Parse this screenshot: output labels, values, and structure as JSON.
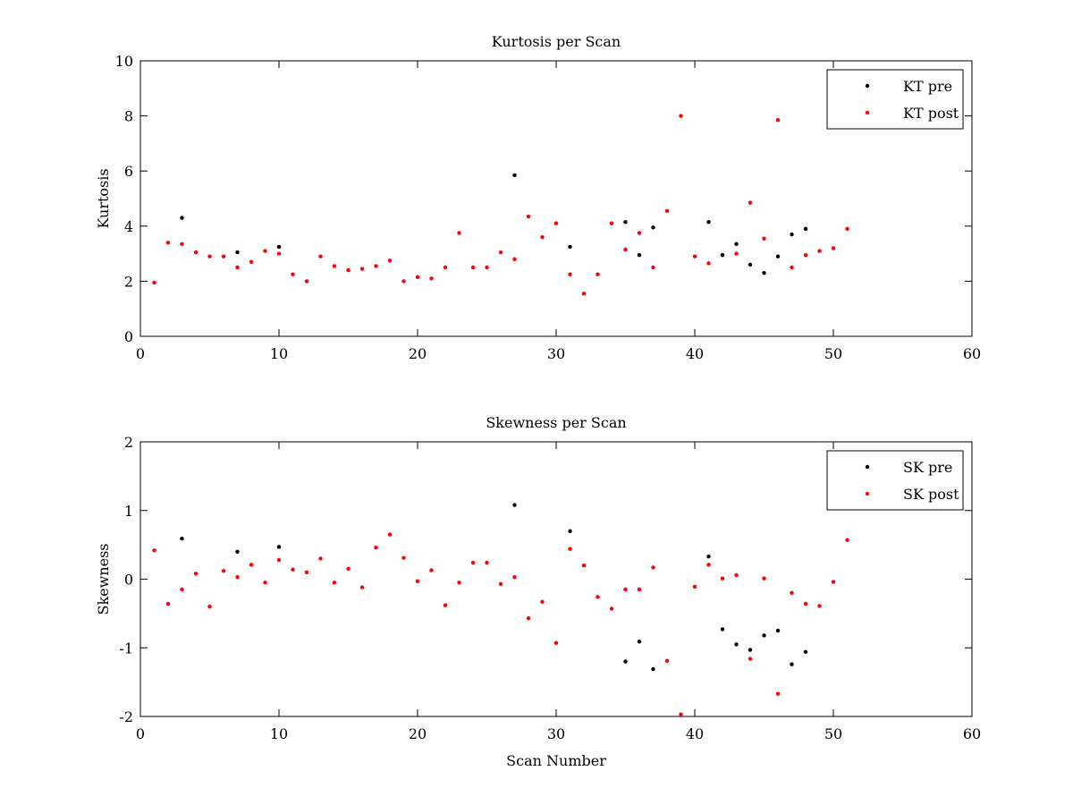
{
  "chart_data": [
    {
      "type": "scatter",
      "title": "Kurtosis per Scan",
      "xlabel": "",
      "ylabel": "Kurtosis",
      "xlim": [
        0,
        60
      ],
      "ylim": [
        0,
        10
      ],
      "xticks": [
        0,
        10,
        20,
        30,
        40,
        50,
        60
      ],
      "yticks": [
        0,
        2,
        4,
        6,
        8,
        10
      ],
      "grid": false,
      "legend_position": "top-right",
      "series": [
        {
          "name": "KT pre",
          "color": "#000000",
          "x": [
            3,
            7,
            10,
            27,
            31,
            35,
            36,
            37,
            41,
            42,
            43,
            44,
            45,
            46,
            47,
            48
          ],
          "y": [
            4.3,
            3.05,
            3.25,
            5.85,
            3.25,
            4.15,
            2.95,
            3.95,
            4.15,
            2.95,
            3.35,
            2.6,
            2.3,
            2.9,
            3.7,
            3.9
          ]
        },
        {
          "name": "KT post",
          "color": "#ff0000",
          "x": [
            1,
            2,
            3,
            4,
            5,
            6,
            7,
            8,
            9,
            10,
            11,
            12,
            13,
            14,
            15,
            16,
            17,
            18,
            19,
            20,
            21,
            22,
            23,
            24,
            25,
            26,
            27,
            28,
            29,
            30,
            31,
            32,
            33,
            34,
            35,
            36,
            37,
            38,
            39,
            40,
            41,
            42,
            43,
            44,
            45,
            46,
            47,
            48,
            49,
            50,
            51
          ],
          "y": [
            1.95,
            3.4,
            3.35,
            3.05,
            2.9,
            2.9,
            2.5,
            2.7,
            3.1,
            3.0,
            2.25,
            2.0,
            2.9,
            2.55,
            2.4,
            2.45,
            2.55,
            2.75,
            2.0,
            2.15,
            2.1,
            2.5,
            3.75,
            2.5,
            2.5,
            3.05,
            2.8,
            4.35,
            3.6,
            4.1,
            2.25,
            1.55,
            2.25,
            4.1,
            3.15,
            3.75,
            2.5,
            4.55,
            8.0,
            2.9,
            2.65,
            2.95,
            3.0,
            4.85,
            3.55,
            7.85,
            2.5,
            2.95,
            3.1,
            3.2,
            3.9
          ]
        }
      ]
    },
    {
      "type": "scatter",
      "title": "Skewness per Scan",
      "xlabel": "Scan Number",
      "ylabel": "Skewness",
      "xlim": [
        0,
        60
      ],
      "ylim": [
        -2,
        2
      ],
      "xticks": [
        0,
        10,
        20,
        30,
        40,
        50,
        60
      ],
      "yticks": [
        -2,
        -1,
        0,
        1,
        2
      ],
      "grid": false,
      "legend_position": "top-right",
      "series": [
        {
          "name": "SK pre",
          "color": "#000000",
          "x": [
            3,
            7,
            10,
            27,
            31,
            35,
            36,
            37,
            41,
            42,
            43,
            44,
            45,
            46,
            47,
            48
          ],
          "y": [
            0.59,
            0.4,
            0.47,
            1.08,
            0.7,
            -1.2,
            -0.91,
            -1.31,
            0.33,
            -0.73,
            -0.95,
            -1.03,
            -0.82,
            -0.75,
            -1.24,
            -1.06
          ]
        },
        {
          "name": "SK post",
          "color": "#ff0000",
          "x": [
            1,
            2,
            3,
            4,
            5,
            6,
            7,
            8,
            9,
            10,
            11,
            12,
            13,
            14,
            15,
            16,
            17,
            18,
            19,
            20,
            21,
            22,
            23,
            24,
            25,
            26,
            27,
            28,
            29,
            30,
            31,
            32,
            33,
            34,
            35,
            36,
            37,
            38,
            39,
            40,
            41,
            42,
            43,
            44,
            45,
            46,
            47,
            48,
            49,
            50,
            51
          ],
          "y": [
            0.42,
            -0.36,
            -0.15,
            0.08,
            -0.4,
            0.12,
            0.03,
            0.21,
            -0.05,
            0.28,
            0.14,
            0.1,
            0.3,
            -0.05,
            0.15,
            -0.12,
            0.46,
            0.65,
            0.31,
            -0.03,
            0.13,
            -0.38,
            -0.05,
            0.24,
            0.24,
            -0.07,
            0.03,
            -0.57,
            -0.33,
            -0.93,
            0.44,
            0.2,
            -0.26,
            -0.43,
            -0.15,
            -0.15,
            0.17,
            -1.19,
            -1.97,
            -0.11,
            0.21,
            0.01,
            0.06,
            -1.16,
            0.01,
            -1.67,
            -0.2,
            -0.36,
            -0.39,
            -0.04,
            0.57
          ]
        }
      ]
    }
  ]
}
